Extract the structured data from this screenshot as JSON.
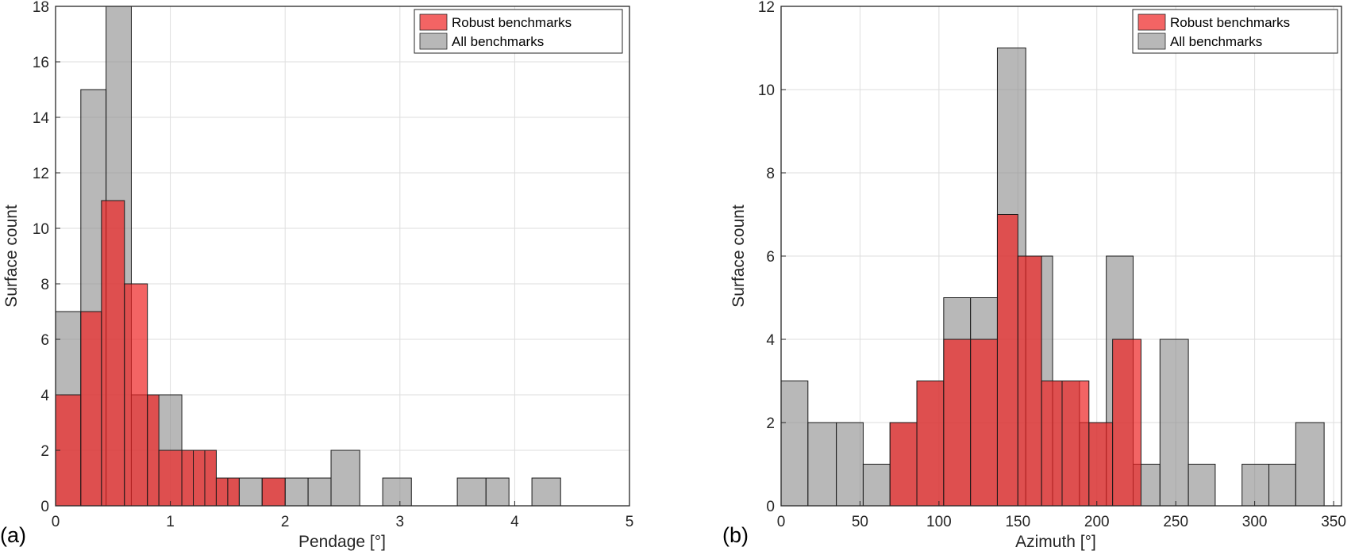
{
  "colors": {
    "robust_fill": "#ee2222",
    "all_fill": "#888888",
    "grid": "#dedede",
    "axis": "#262626"
  },
  "chart_data": [
    {
      "type": "bar",
      "panel_label": "(a)",
      "xlabel": "Pendage [°]",
      "ylabel": "Surface count",
      "xlim": [
        0,
        5
      ],
      "ylim": [
        0,
        18
      ],
      "xticks": [
        0,
        1,
        2,
        3,
        4,
        5
      ],
      "yticks": [
        0,
        2,
        4,
        6,
        8,
        10,
        12,
        14,
        16,
        18
      ],
      "grid": true,
      "legend": {
        "position": "top-right",
        "entries": [
          "Robust benchmarks",
          "All benchmarks"
        ]
      },
      "series": [
        {
          "name": "All benchmarks",
          "bins": [
            {
              "x0": 0.0,
              "x1": 0.22,
              "count": 7
            },
            {
              "x0": 0.22,
              "x1": 0.44,
              "count": 15
            },
            {
              "x0": 0.44,
              "x1": 0.66,
              "count": 18
            },
            {
              "x0": 0.66,
              "x1": 0.8,
              "count": 4
            },
            {
              "x0": 0.8,
              "x1": 1.1,
              "count": 4
            },
            {
              "x0": 1.1,
              "x1": 1.4,
              "count": 2
            },
            {
              "x0": 1.4,
              "x1": 1.6,
              "count": 1
            },
            {
              "x0": 1.6,
              "x1": 1.8,
              "count": 1
            },
            {
              "x0": 1.8,
              "x1": 2.0,
              "count": 1
            },
            {
              "x0": 2.0,
              "x1": 2.2,
              "count": 1
            },
            {
              "x0": 2.2,
              "x1": 2.4,
              "count": 1
            },
            {
              "x0": 2.4,
              "x1": 2.65,
              "count": 2
            },
            {
              "x0": 2.85,
              "x1": 3.1,
              "count": 1
            },
            {
              "x0": 3.5,
              "x1": 3.75,
              "count": 1
            },
            {
              "x0": 3.75,
              "x1": 3.95,
              "count": 1
            },
            {
              "x0": 4.15,
              "x1": 4.4,
              "count": 1
            }
          ]
        },
        {
          "name": "Robust benchmarks",
          "bins": [
            {
              "x0": 0.0,
              "x1": 0.22,
              "count": 4
            },
            {
              "x0": 0.22,
              "x1": 0.4,
              "count": 7
            },
            {
              "x0": 0.4,
              "x1": 0.6,
              "count": 11
            },
            {
              "x0": 0.6,
              "x1": 0.8,
              "count": 8
            },
            {
              "x0": 0.8,
              "x1": 0.9,
              "count": 4
            },
            {
              "x0": 0.9,
              "x1": 1.1,
              "count": 2
            },
            {
              "x0": 1.1,
              "x1": 1.2,
              "count": 2
            },
            {
              "x0": 1.2,
              "x1": 1.3,
              "count": 2
            },
            {
              "x0": 1.3,
              "x1": 1.4,
              "count": 2
            },
            {
              "x0": 1.4,
              "x1": 1.5,
              "count": 1
            },
            {
              "x0": 1.5,
              "x1": 1.6,
              "count": 1
            },
            {
              "x0": 1.8,
              "x1": 2.0,
              "count": 1
            }
          ]
        }
      ]
    },
    {
      "type": "bar",
      "panel_label": "(b)",
      "xlabel": "Azimuth [°]",
      "ylabel": "Surface count",
      "xlim": [
        0,
        355
      ],
      "ylim": [
        0,
        12
      ],
      "xticks": [
        0,
        50,
        100,
        150,
        200,
        250,
        300,
        350
      ],
      "yticks": [
        0,
        2,
        4,
        6,
        8,
        10,
        12
      ],
      "grid": true,
      "legend": {
        "position": "top-right",
        "entries": [
          "Robust benchmarks",
          "All benchmarks"
        ]
      },
      "series": [
        {
          "name": "All benchmarks",
          "bins": [
            {
              "x0": 0,
              "x1": 17,
              "count": 3
            },
            {
              "x0": 17,
              "x1": 35,
              "count": 2
            },
            {
              "x0": 35,
              "x1": 52,
              "count": 2
            },
            {
              "x0": 52,
              "x1": 69,
              "count": 1
            },
            {
              "x0": 69,
              "x1": 86,
              "count": 2
            },
            {
              "x0": 86,
              "x1": 103,
              "count": 3
            },
            {
              "x0": 103,
              "x1": 120,
              "count": 5
            },
            {
              "x0": 120,
              "x1": 137,
              "count": 5
            },
            {
              "x0": 137,
              "x1": 155,
              "count": 11
            },
            {
              "x0": 155,
              "x1": 172,
              "count": 6
            },
            {
              "x0": 172,
              "x1": 189,
              "count": 3
            },
            {
              "x0": 189,
              "x1": 206,
              "count": 2
            },
            {
              "x0": 206,
              "x1": 223,
              "count": 6
            },
            {
              "x0": 223,
              "x1": 240,
              "count": 1
            },
            {
              "x0": 240,
              "x1": 258,
              "count": 4
            },
            {
              "x0": 258,
              "x1": 275,
              "count": 1
            },
            {
              "x0": 292,
              "x1": 309,
              "count": 1
            },
            {
              "x0": 309,
              "x1": 326,
              "count": 1
            },
            {
              "x0": 326,
              "x1": 344,
              "count": 2
            }
          ]
        },
        {
          "name": "Robust benchmarks",
          "bins": [
            {
              "x0": 69,
              "x1": 86,
              "count": 2
            },
            {
              "x0": 86,
              "x1": 103,
              "count": 3
            },
            {
              "x0": 103,
              "x1": 120,
              "count": 4
            },
            {
              "x0": 120,
              "x1": 137,
              "count": 4
            },
            {
              "x0": 137,
              "x1": 150,
              "count": 7
            },
            {
              "x0": 150,
              "x1": 165,
              "count": 6
            },
            {
              "x0": 165,
              "x1": 178,
              "count": 3
            },
            {
              "x0": 178,
              "x1": 195,
              "count": 3
            },
            {
              "x0": 195,
              "x1": 210,
              "count": 2
            },
            {
              "x0": 210,
              "x1": 228,
              "count": 4
            }
          ]
        }
      ]
    }
  ]
}
